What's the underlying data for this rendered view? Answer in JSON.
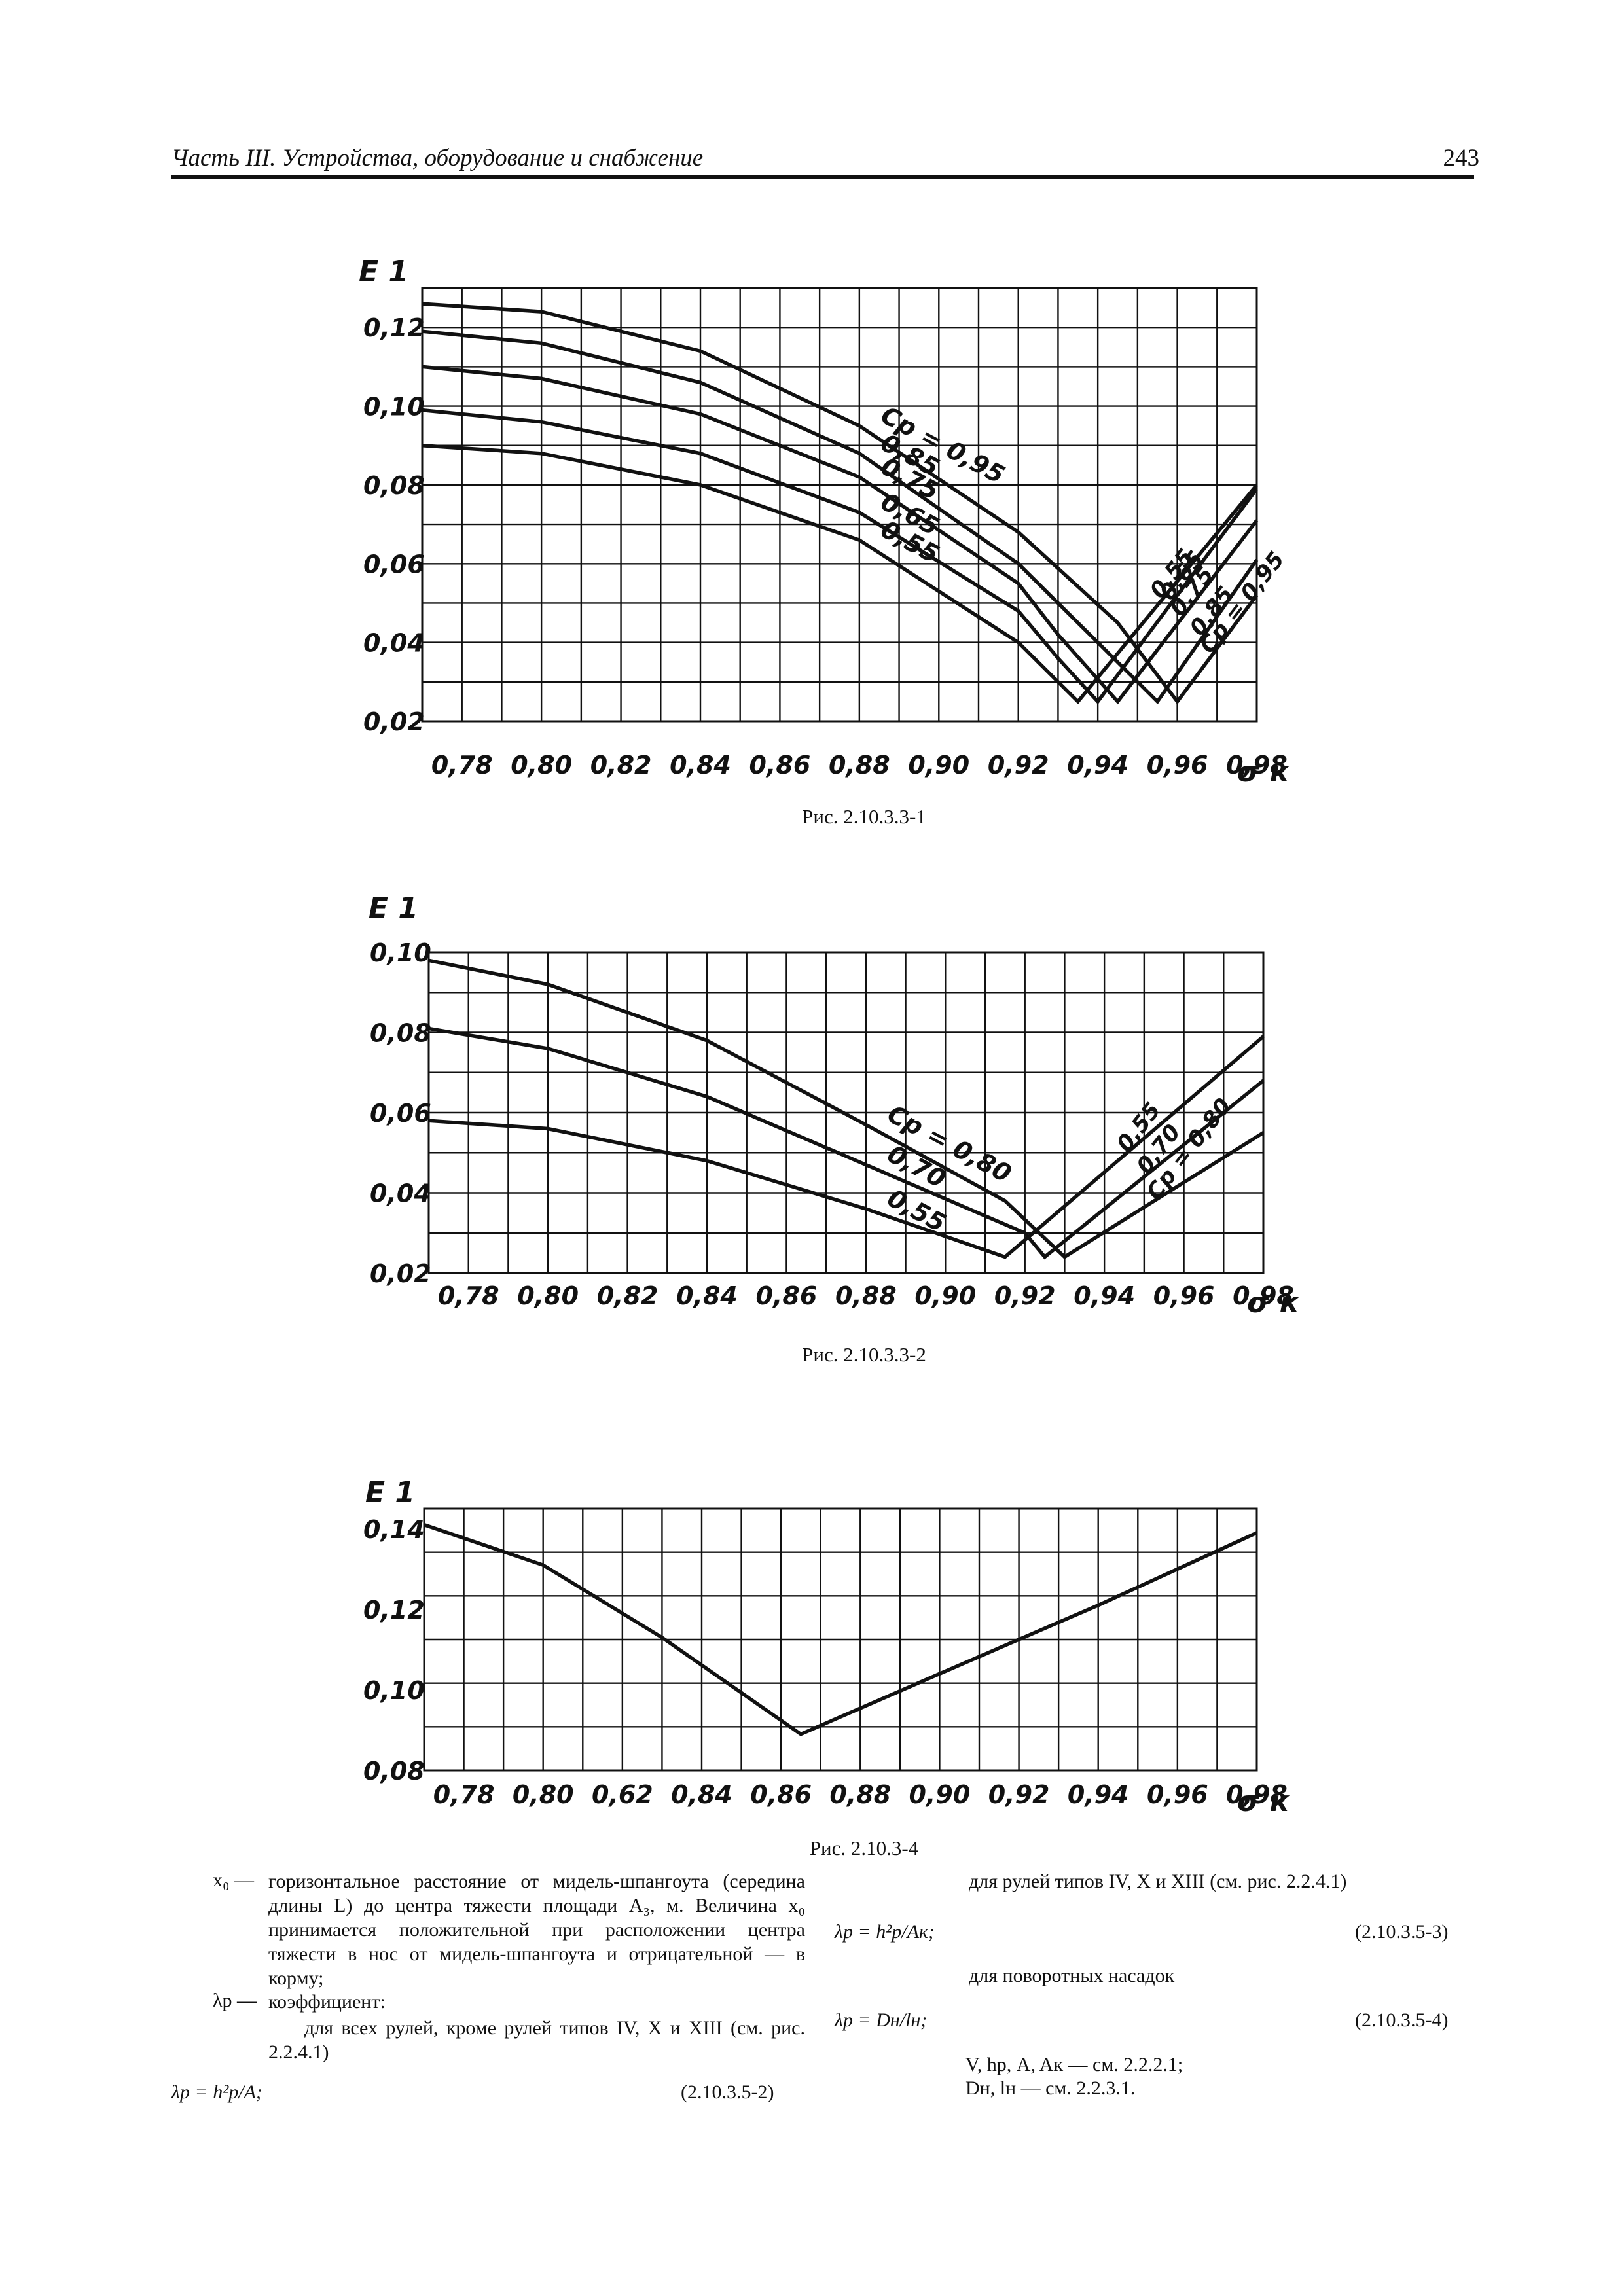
{
  "header": {
    "title": "Часть III. Устройства, оборудование и снабжение",
    "page_number": "243"
  },
  "figures": [
    {
      "caption": "Рис. 2.10.3.3-1",
      "ylabel": "E 1",
      "xlabel": "σ к",
      "chart_data": {
        "type": "line",
        "xlim": [
          0.77,
          0.98
        ],
        "ylim": [
          0.02,
          0.13
        ],
        "xticks": [
          "0,78",
          "0,80",
          "0,82",
          "0,84",
          "0,86",
          "0,88",
          "0,90",
          "0,92",
          "0,94",
          "0,96",
          "0,98"
        ],
        "yticks": [
          "0,02",
          "0,04",
          "0,06",
          "0,08",
          "0,10",
          "0,12"
        ],
        "series": [
          {
            "name": "Cp = 0,95",
            "x": [
              0.77,
              0.8,
              0.84,
              0.88,
              0.92,
              0.945,
              0.96,
              0.98
            ],
            "y": [
              0.126,
              0.124,
              0.114,
              0.095,
              0.068,
              0.045,
              0.025,
              0.052
            ]
          },
          {
            "name": "0,85",
            "x": [
              0.77,
              0.8,
              0.84,
              0.88,
              0.92,
              0.94,
              0.955,
              0.98
            ],
            "y": [
              0.119,
              0.116,
              0.106,
              0.088,
              0.06,
              0.04,
              0.025,
              0.061
            ]
          },
          {
            "name": "0,75",
            "x": [
              0.77,
              0.8,
              0.84,
              0.88,
              0.92,
              0.93,
              0.945,
              0.98
            ],
            "y": [
              0.11,
              0.107,
              0.098,
              0.082,
              0.055,
              0.042,
              0.025,
              0.071
            ]
          },
          {
            "name": "0,65",
            "x": [
              0.77,
              0.8,
              0.84,
              0.88,
              0.92,
              0.93,
              0.94,
              0.98
            ],
            "y": [
              0.099,
              0.096,
              0.088,
              0.073,
              0.048,
              0.036,
              0.025,
              0.079
            ]
          },
          {
            "name": "0,55",
            "x": [
              0.77,
              0.8,
              0.84,
              0.88,
              0.92,
              0.935,
              0.98
            ],
            "y": [
              0.09,
              0.088,
              0.08,
              0.066,
              0.04,
              0.025,
              0.08
            ]
          }
        ]
      }
    },
    {
      "caption": "Рис. 2.10.3.3-2",
      "ylabel": "E 1",
      "xlabel": "σ к",
      "chart_data": {
        "type": "line",
        "xlim": [
          0.77,
          0.98
        ],
        "ylim": [
          0.02,
          0.1
        ],
        "xticks": [
          "0,78",
          "0,80",
          "0,82",
          "0,84",
          "0,86",
          "0,88",
          "0,90",
          "0,92",
          "0,94",
          "0,96",
          "0,98"
        ],
        "yticks": [
          "0,02",
          "0,04",
          "0,06",
          "0,08",
          "0,10"
        ],
        "series": [
          {
            "name": "Cp = 0,80",
            "x": [
              0.77,
              0.8,
              0.84,
              0.88,
              0.915,
              0.93,
              0.98
            ],
            "y": [
              0.098,
              0.092,
              0.078,
              0.057,
              0.038,
              0.024,
              0.055
            ]
          },
          {
            "name": "0,70",
            "x": [
              0.77,
              0.8,
              0.84,
              0.88,
              0.92,
              0.925,
              0.98
            ],
            "y": [
              0.081,
              0.076,
              0.064,
              0.047,
              0.03,
              0.024,
              0.068
            ]
          },
          {
            "name": "0,55",
            "x": [
              0.77,
              0.8,
              0.84,
              0.88,
              0.915,
              0.98
            ],
            "y": [
              0.058,
              0.056,
              0.048,
              0.036,
              0.024,
              0.079
            ]
          }
        ]
      }
    },
    {
      "caption": "Рис. 2.10.3-4",
      "ylabel": "E 1",
      "xlabel": "σ к",
      "chart_data": {
        "type": "line",
        "xlim": [
          0.77,
          0.98
        ],
        "ylim": [
          0.08,
          0.145
        ],
        "xticks": [
          "0,78",
          "0,80",
          "0,62",
          "0,84",
          "0,86",
          "0,88",
          "0,90",
          "0,92",
          "0,94",
          "0,96",
          "0,98"
        ],
        "yticks": [
          "0,08",
          "0,10",
          "0,12",
          "0,14"
        ],
        "series": [
          {
            "name": "",
            "x": [
              0.77,
              0.8,
              0.83,
              0.865,
              0.9,
              0.94,
              0.98
            ],
            "y": [
              0.141,
              0.131,
              0.113,
              0.089,
              0.104,
              0.121,
              0.139
            ]
          }
        ]
      }
    }
  ],
  "text": {
    "x0_term": "x₀ —",
    "x0_def": "горизонтальное расстояние от мидель-шпангоута (середина длины L) до центра тяжести площади A₃, м. Величина x₀ принимается положительной при расположении центра тяжести в нос от мидель-шпангоута и отрицательной — в корму;",
    "lambda_term": "λр —",
    "lambda_def": "коэффициент:",
    "case1": "для всех рулей, кроме рулей типов IV, X и XIII (см. рис. 2.2.4.1)",
    "eq2_formula": "λр = h²р/A;",
    "eq2_number": "(2.10.3.5-2)",
    "case2": "для рулей типов IV, X и XIII (см. рис. 2.2.4.1)",
    "eq3_formula": "λр = h²р/Aк;",
    "eq3_number": "(2.10.3.5-3)",
    "case3": "для поворотных насадок",
    "eq4_formula": "λр = Dн/lн;",
    "eq4_number": "(2.10.3.5-4)",
    "ref1": "V, hр, A, Aк — см. 2.2.2.1;",
    "ref2": "Dн, lн — см. 2.2.3.1."
  }
}
